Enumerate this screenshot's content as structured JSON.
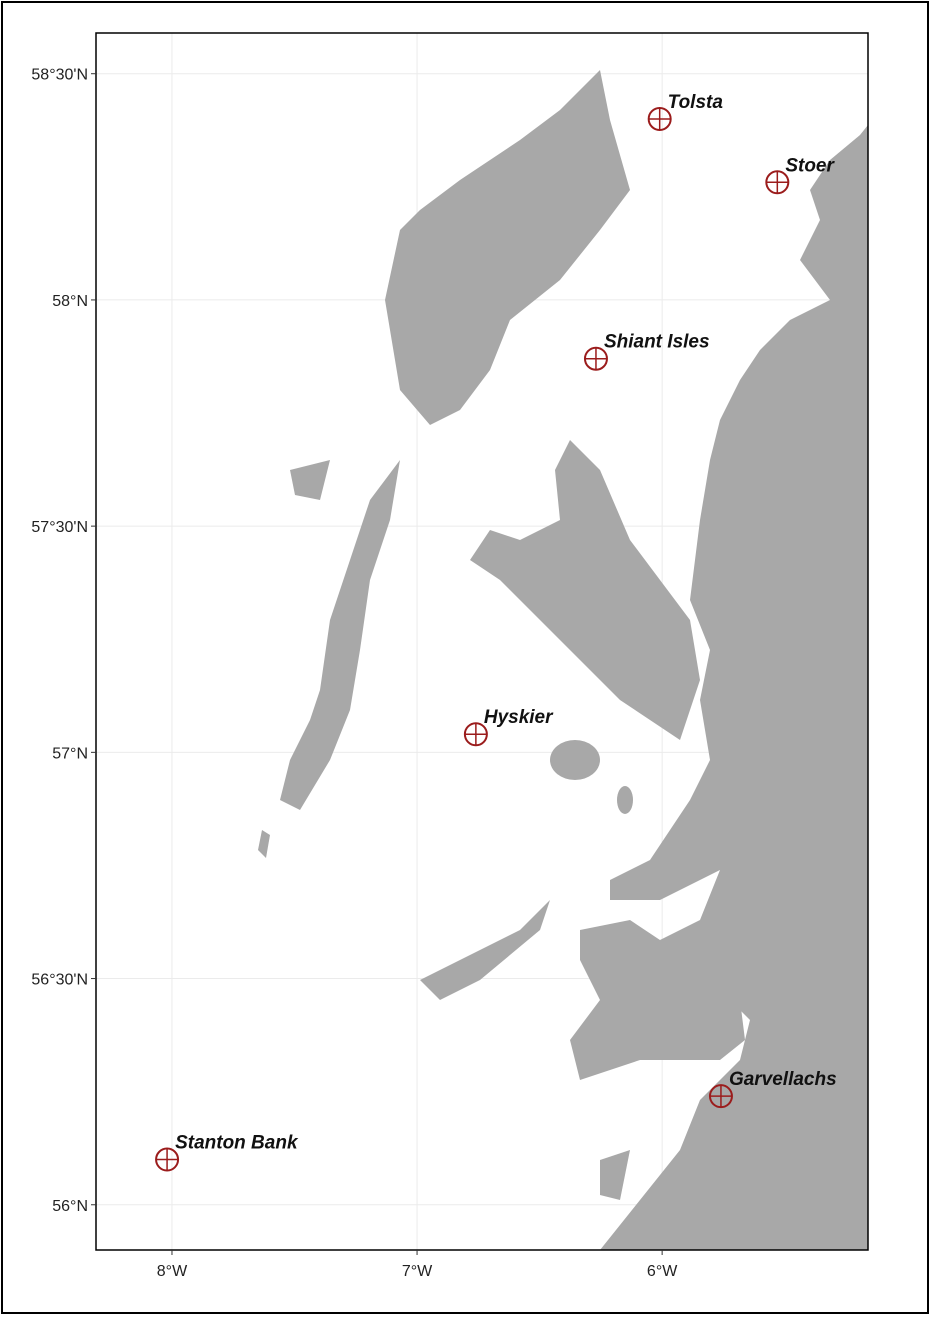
{
  "chart_data": {
    "type": "scatter",
    "x": [
      -6.01,
      -5.53,
      -6.27,
      -6.76,
      -5.76,
      -8.02
    ],
    "values": [
      58.4,
      58.26,
      57.87,
      57.04,
      56.24,
      56.1
    ],
    "labels": [
      "Tolsta",
      "Stoer",
      "Shiant Isles",
      "Hyskier",
      "Garvellachs",
      "Stanton Bank"
    ],
    "color": "#9b1c1c",
    "xlim": [
      -8.31,
      -5.16
    ],
    "ylim": [
      55.9,
      58.59
    ],
    "xticks": [
      {
        "value": -8,
        "label": "8°W"
      },
      {
        "value": -7,
        "label": "7°W"
      },
      {
        "value": -6,
        "label": "6°W"
      }
    ],
    "yticks": [
      {
        "value": 56,
        "label": "56°N"
      },
      {
        "value": 56.5,
        "label": "56°30'N"
      },
      {
        "value": 57,
        "label": "57°N"
      },
      {
        "value": 57.5,
        "label": "57°30'N"
      },
      {
        "value": 58,
        "label": "58°N"
      },
      {
        "value": 58.5,
        "label": "58°30'N"
      }
    ],
    "grid": true
  }
}
